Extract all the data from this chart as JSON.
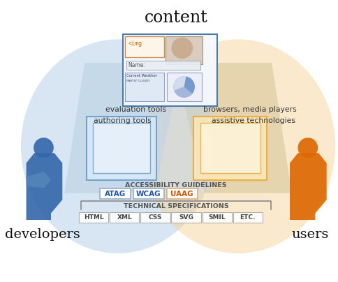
{
  "title": "content",
  "left_label": "developers",
  "right_label": "users",
  "eval_tools": "evaluation tools",
  "auth_tools": "authoring tools",
  "browsers": "browsers, media players",
  "assistive": "assistive technologies",
  "guidelines_label": "ACCESSIBILITY GUIDELINES",
  "atag": "ATAG",
  "wcag": "WCAG",
  "uaag": "UAAG",
  "tech_spec_label": "TECHNICAL SPECIFICATIONS",
  "tech_specs": [
    "HTML",
    "XML",
    "CSS",
    "SVG",
    "SMIL",
    "ETC."
  ],
  "blue_light": "#aac8e8",
  "blue_mid": "#6699cc",
  "blue_dark": "#3366aa",
  "orange_light": "#f5d090",
  "orange_mid": "#e8a830",
  "orange_dark": "#dd6600",
  "bg": "#ffffff",
  "atag_color": "#2255aa",
  "wcag_color": "#2255aa",
  "uaag_color": "#cc5500"
}
